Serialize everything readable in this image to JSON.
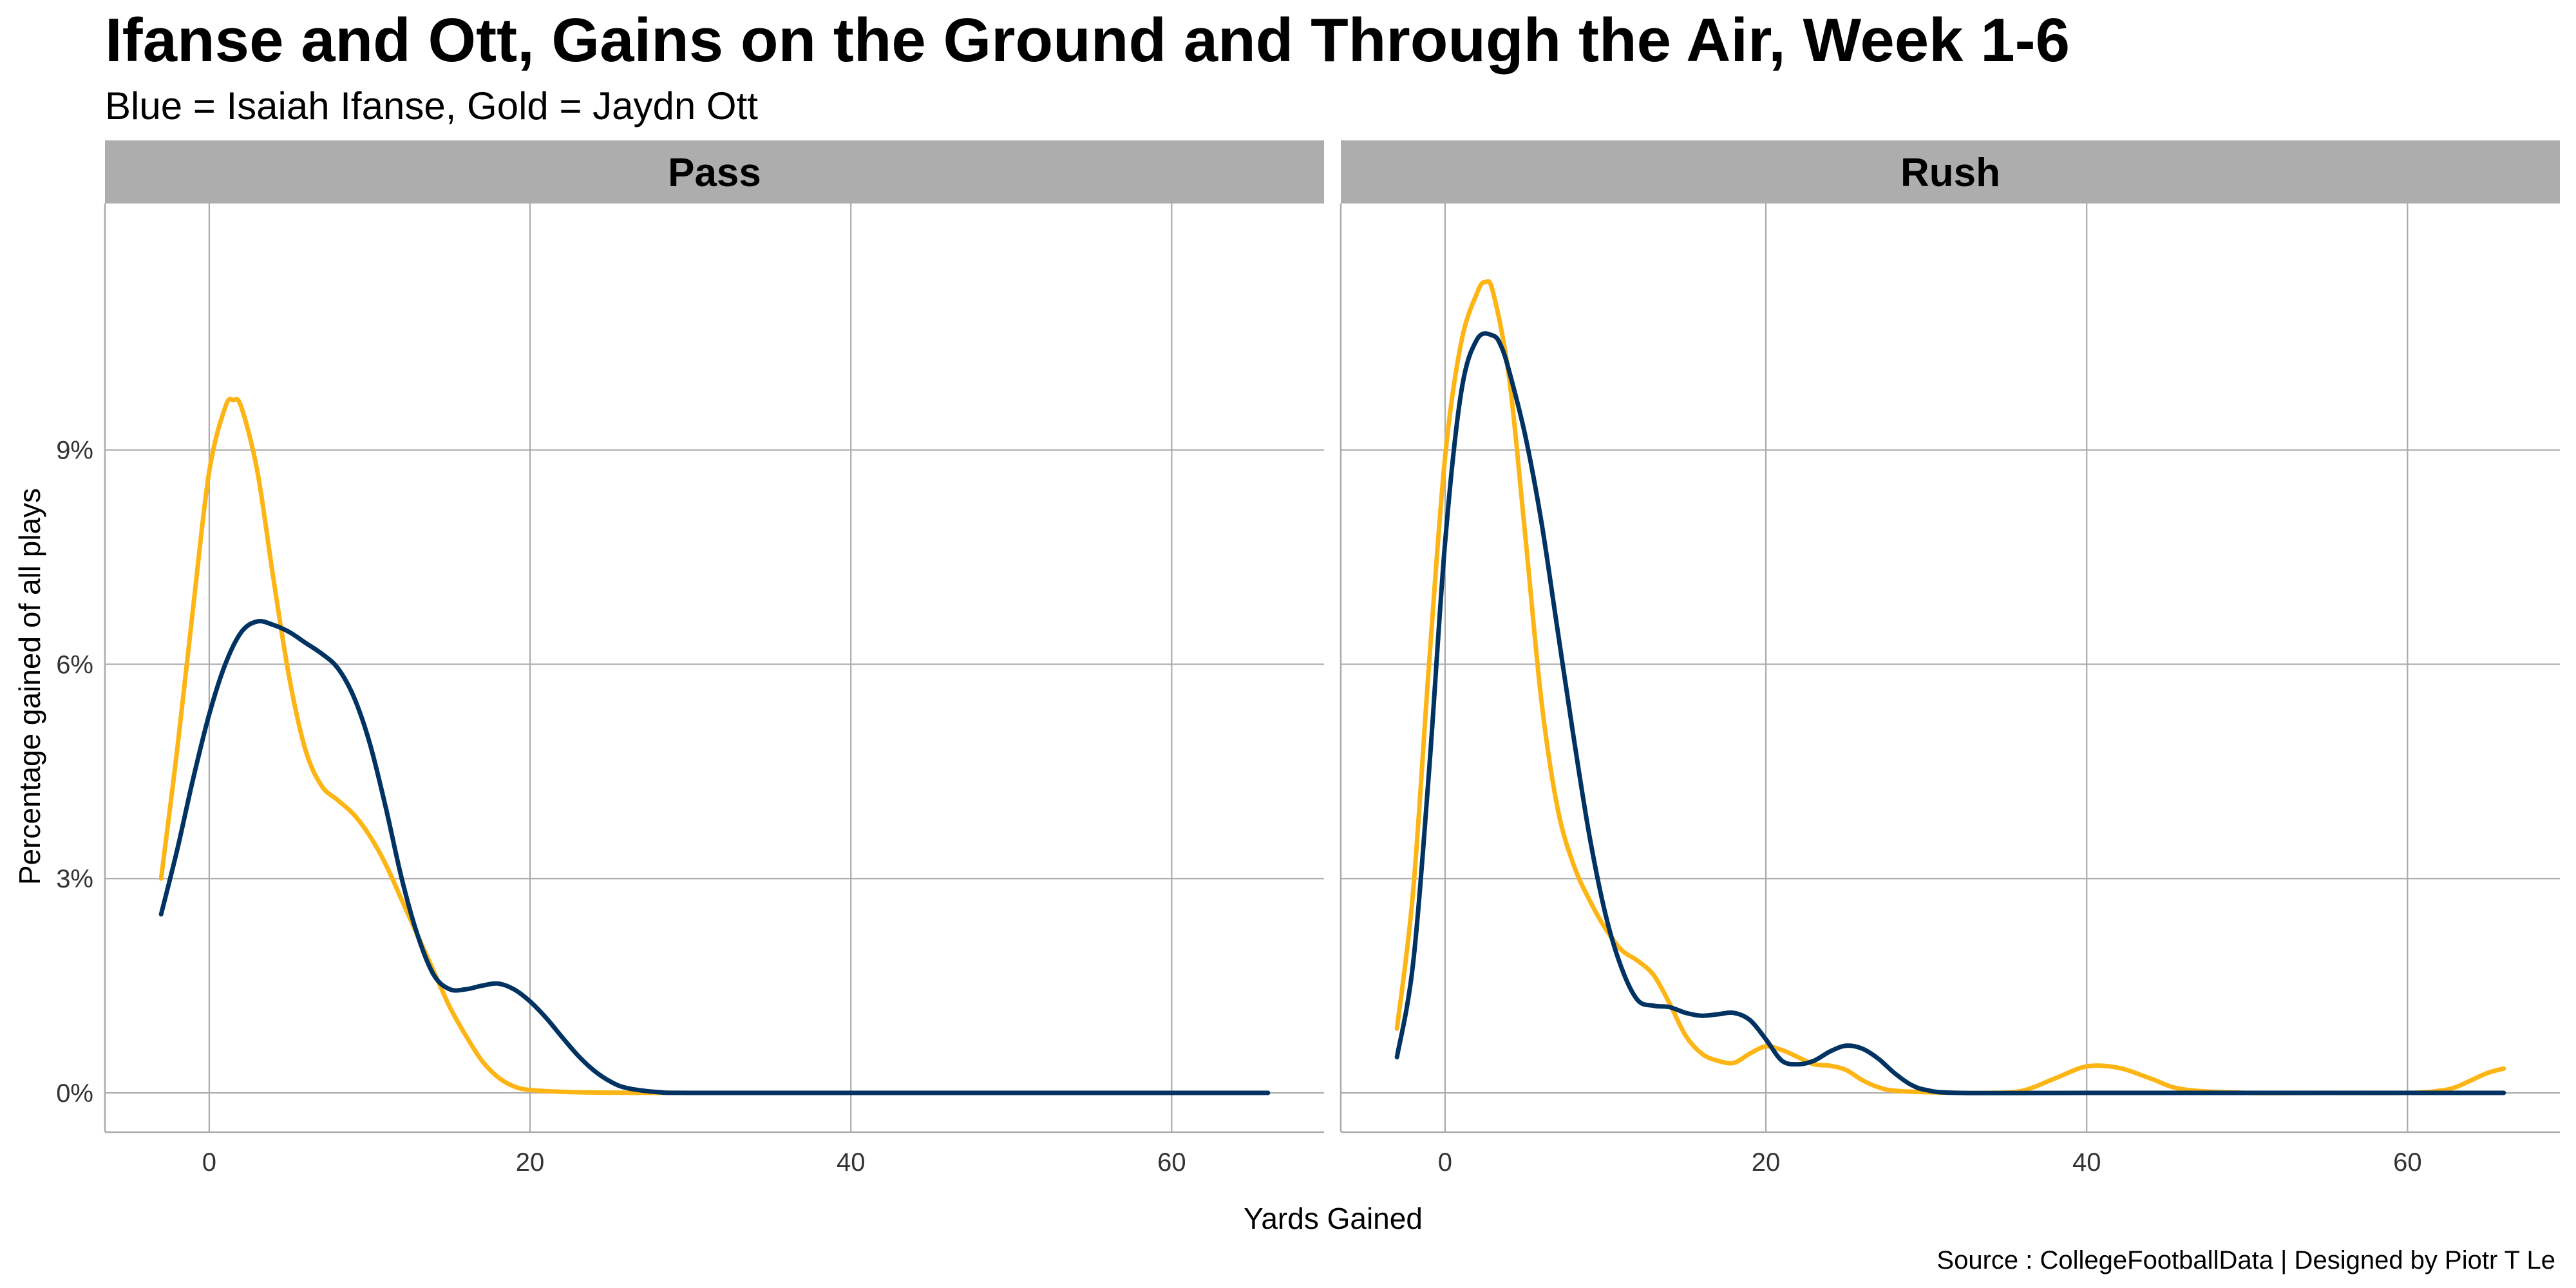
{
  "chart_data": {
    "type": "line",
    "title": "Ifanse and Ott, Gains on the Ground and Through the Air, Week 1-6",
    "subtitle": "Blue = Isaiah Ifanse, Gold = Jaydn Ott",
    "xlabel": "Yards Gained",
    "ylabel": "Percentage gained of all plays",
    "caption": "Source : CollegeFootballData | Designed by Piotr T Le",
    "xlim": [
      -6.5,
      69.5
    ],
    "ylim": [
      -0.0055,
      0.1245
    ],
    "x_ticks": [
      0,
      20,
      40,
      60
    ],
    "x_tick_labels": [
      "0",
      "20",
      "40",
      "60"
    ],
    "y_ticks": [
      0,
      0.03,
      0.06,
      0.09
    ],
    "y_tick_labels": [
      "0%",
      "3%",
      "6%",
      "9%"
    ],
    "grid": true,
    "panels": [
      {
        "label": "Pass",
        "series": [
          {
            "name": "Jaydn Ott",
            "color": "#FDB515",
            "x": [
              -3,
              -2,
              -1,
              0,
              1,
              1.5,
              2,
              3,
              4,
              5,
              6,
              7,
              8,
              9,
              10,
              11,
              12,
              13,
              14,
              15,
              16,
              17,
              18,
              19,
              20,
              22,
              24,
              26,
              30,
              40,
              50,
              60,
              66
            ],
            "y": [
              0.03,
              0.048,
              0.068,
              0.087,
              0.096,
              0.097,
              0.096,
              0.087,
              0.072,
              0.058,
              0.048,
              0.043,
              0.041,
              0.039,
              0.036,
              0.032,
              0.027,
              0.022,
              0.017,
              0.012,
              0.008,
              0.0045,
              0.0022,
              0.0009,
              0.0004,
              0.00015,
              5e-05,
              2e-05,
              0,
              0,
              0,
              0,
              0
            ]
          },
          {
            "name": "Isaiah Ifanse",
            "color": "#003262",
            "x": [
              -3,
              -2,
              -1,
              0,
              1,
              2,
              3,
              4,
              5,
              6,
              7,
              8,
              9,
              10,
              11,
              12,
              13,
              14,
              15,
              16,
              17,
              18,
              19,
              20,
              21,
              22,
              23,
              24,
              25,
              26,
              28,
              30,
              40,
              50,
              60,
              66
            ],
            "y": [
              0.025,
              0.034,
              0.044,
              0.053,
              0.06,
              0.0645,
              0.066,
              0.0655,
              0.0645,
              0.063,
              0.0615,
              0.0595,
              0.0555,
              0.049,
              0.04,
              0.03,
              0.022,
              0.0165,
              0.0145,
              0.0145,
              0.015,
              0.0153,
              0.0145,
              0.0128,
              0.0105,
              0.0078,
              0.0052,
              0.0031,
              0.0016,
              0.0007,
              0.0001,
              0,
              0,
              0,
              0,
              0
            ]
          }
        ]
      },
      {
        "label": "Rush",
        "series": [
          {
            "name": "Jaydn Ott",
            "color": "#FDB515",
            "x": [
              -3,
              -2,
              -1,
              0,
              1,
              2,
              2.5,
              3,
              4,
              5,
              6,
              7,
              8,
              9,
              10,
              11,
              12,
              13,
              14,
              15,
              16,
              17,
              18,
              19,
              20,
              21,
              22,
              23,
              24,
              25,
              26,
              27,
              28,
              30,
              32,
              34,
              36,
              38,
              40,
              42,
              44,
              46,
              50,
              55,
              60,
              62,
              63,
              64,
              65,
              66
            ],
            "y": [
              0.009,
              0.028,
              0.06,
              0.089,
              0.105,
              0.112,
              0.1135,
              0.112,
              0.1,
              0.078,
              0.055,
              0.04,
              0.032,
              0.027,
              0.023,
              0.02,
              0.0185,
              0.0165,
              0.0125,
              0.008,
              0.0055,
              0.0045,
              0.0042,
              0.0055,
              0.0065,
              0.006,
              0.005,
              0.004,
              0.0038,
              0.0032,
              0.0018,
              0.0008,
              0.0003,
              0.0001,
              0,
              0,
              0.0003,
              0.002,
              0.0037,
              0.0035,
              0.002,
              0.0005,
              0,
              0,
              0,
              0.0003,
              0.0008,
              0.0018,
              0.0028,
              0.0034
            ]
          },
          {
            "name": "Isaiah Ifanse",
            "color": "#003262",
            "x": [
              -3,
              -2,
              -1,
              0,
              1,
              2,
              3,
              3.5,
              4,
              5,
              6,
              7,
              8,
              9,
              10,
              11,
              12,
              13,
              14,
              15,
              16,
              17,
              18,
              19,
              20,
              21,
              22,
              23,
              24,
              25,
              26,
              27,
              28,
              29,
              30,
              32,
              40,
              50,
              60,
              66
            ],
            "y": [
              0.005,
              0.018,
              0.045,
              0.077,
              0.098,
              0.1055,
              0.106,
              0.1045,
              0.101,
              0.092,
              0.08,
              0.065,
              0.05,
              0.036,
              0.025,
              0.0175,
              0.013,
              0.0122,
              0.012,
              0.0112,
              0.0108,
              0.011,
              0.0112,
              0.0102,
              0.0075,
              0.0045,
              0.004,
              0.0045,
              0.0058,
              0.0066,
              0.0062,
              0.0048,
              0.0028,
              0.0012,
              0.0004,
              0,
              0,
              0,
              0,
              0
            ]
          }
        ]
      }
    ]
  },
  "colors": {
    "strip_background": "#ADADAD",
    "grid_line": "#ABABAB",
    "axis_line": "#ABABAB",
    "ifanse": "#003262",
    "ott": "#FDB515"
  }
}
